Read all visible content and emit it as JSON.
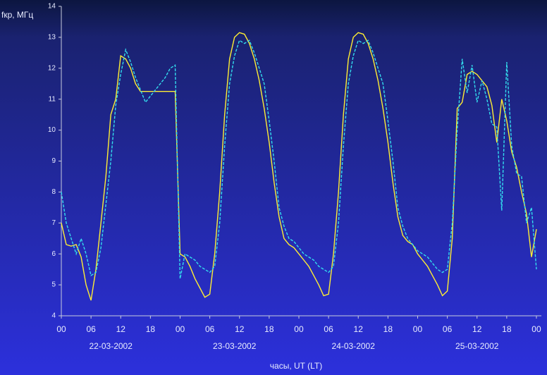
{
  "chart_data": {
    "type": "line",
    "ylabel": "fкр, МГц",
    "xlabel": "часы, UT (LT)",
    "xlim": [
      0,
      97
    ],
    "ylim": [
      4,
      14
    ],
    "yticks": [
      4,
      5,
      6,
      7,
      8,
      9,
      10,
      11,
      12,
      13,
      14
    ],
    "xticks": [
      {
        "value": 0,
        "label": "00"
      },
      {
        "value": 6,
        "label": "06"
      },
      {
        "value": 12,
        "label": "12"
      },
      {
        "value": 18,
        "label": "18"
      },
      {
        "value": 24,
        "label": "00"
      },
      {
        "value": 30,
        "label": "06"
      },
      {
        "value": 36,
        "label": "12"
      },
      {
        "value": 42,
        "label": "18"
      },
      {
        "value": 48,
        "label": "00"
      },
      {
        "value": 54,
        "label": "06"
      },
      {
        "value": 60,
        "label": "12"
      },
      {
        "value": 66,
        "label": "18"
      },
      {
        "value": 72,
        "label": "00"
      },
      {
        "value": 78,
        "label": "06"
      },
      {
        "value": 84,
        "label": "12"
      },
      {
        "value": 90,
        "label": "18"
      },
      {
        "value": 96,
        "label": "00"
      }
    ],
    "date_labels": [
      {
        "value": 10,
        "label": "22-03-2002"
      },
      {
        "value": 35,
        "label": "23-03-2002"
      },
      {
        "value": 59,
        "label": "24-03-2002"
      },
      {
        "value": 84,
        "label": "25-03-2002"
      }
    ],
    "x": [
      0,
      1,
      2,
      3,
      4,
      5,
      6,
      7,
      8,
      9,
      10,
      11,
      12,
      13,
      14,
      15,
      16,
      17,
      18,
      19,
      20,
      21,
      22,
      23,
      24,
      25,
      26,
      27,
      28,
      29,
      30,
      31,
      32,
      33,
      34,
      35,
      36,
      37,
      38,
      39,
      40,
      41,
      42,
      43,
      44,
      45,
      46,
      47,
      48,
      49,
      50,
      51,
      52,
      53,
      54,
      55,
      56,
      57,
      58,
      59,
      60,
      61,
      62,
      63,
      64,
      65,
      66,
      67,
      68,
      69,
      70,
      71,
      72,
      73,
      74,
      75,
      76,
      77,
      78,
      79,
      80,
      81,
      82,
      83,
      84,
      85,
      86,
      87,
      88,
      89,
      90,
      91,
      92,
      93,
      94,
      95,
      96
    ],
    "series": [
      {
        "color": "#ffee33",
        "dash": false,
        "values": [
          7.0,
          6.3,
          6.25,
          6.3,
          5.9,
          5.0,
          4.5,
          5.5,
          7.0,
          8.5,
          10.5,
          11.0,
          12.4,
          12.3,
          12.0,
          11.5,
          11.25,
          11.25,
          11.25,
          11.25,
          11.25,
          11.25,
          11.25,
          11.25,
          6.0,
          5.9,
          5.6,
          5.2,
          4.9,
          4.6,
          4.7,
          6.0,
          8.0,
          10.5,
          12.3,
          13.0,
          13.15,
          13.1,
          12.8,
          12.3,
          11.6,
          10.7,
          9.6,
          8.3,
          7.2,
          6.5,
          6.3,
          6.2,
          6.0,
          5.8,
          5.6,
          5.3,
          5.0,
          4.65,
          4.7,
          6.0,
          8.0,
          10.5,
          12.3,
          13.0,
          13.15,
          13.1,
          12.8,
          12.3,
          11.6,
          10.7,
          9.6,
          8.3,
          7.2,
          6.6,
          6.4,
          6.3,
          6.0,
          5.8,
          5.6,
          5.3,
          5.0,
          4.65,
          4.8,
          6.5,
          10.7,
          10.9,
          11.8,
          11.9,
          11.8,
          11.6,
          11.4,
          10.8,
          9.6,
          11.0,
          10.3,
          9.3,
          8.8,
          8.0,
          7.3,
          5.9,
          6.8
        ]
      },
      {
        "color": "#33ddee",
        "dash": true,
        "values": [
          8.0,
          7.0,
          6.5,
          6.0,
          6.5,
          6.0,
          5.3,
          5.4,
          6.2,
          7.6,
          9.0,
          10.8,
          11.8,
          12.6,
          12.2,
          11.7,
          11.3,
          10.9,
          11.1,
          11.3,
          11.5,
          11.7,
          12.0,
          12.1,
          5.2,
          6.0,
          5.9,
          5.8,
          5.6,
          5.5,
          5.4,
          5.6,
          7.0,
          9.5,
          11.5,
          12.4,
          12.9,
          12.8,
          12.9,
          12.5,
          12.0,
          11.5,
          10.3,
          9.0,
          7.5,
          6.9,
          6.5,
          6.4,
          6.2,
          6.0,
          5.9,
          5.8,
          5.6,
          5.5,
          5.4,
          5.6,
          7.0,
          9.5,
          11.5,
          12.4,
          12.9,
          12.8,
          12.9,
          12.5,
          12.0,
          11.5,
          10.3,
          9.0,
          7.5,
          6.9,
          6.5,
          6.3,
          6.1,
          6.0,
          5.9,
          5.7,
          5.5,
          5.4,
          5.5,
          7.0,
          10.0,
          12.3,
          11.2,
          12.1,
          10.9,
          11.6,
          11.0,
          10.2,
          10.1,
          7.4,
          12.2,
          9.5,
          8.6,
          8.5,
          7.0,
          7.5,
          5.5
        ]
      }
    ]
  }
}
